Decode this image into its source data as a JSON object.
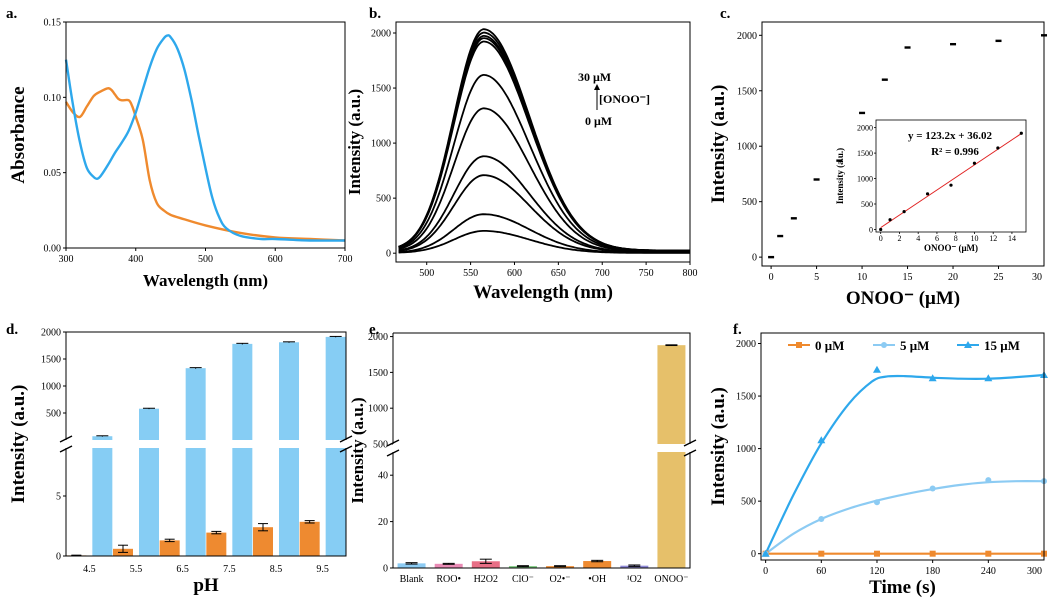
{
  "colors": {
    "orange": "#EF8A2E",
    "blue": "#2EA8EC",
    "lightblue": "#8CCBF3",
    "barblue": "#86CDF4",
    "barorange": "#EE8A30",
    "gold": "#E6C06A",
    "red": "#E02020"
  },
  "chart_data": [
    {
      "id": "a",
      "panel_label": "a.",
      "type": "line",
      "xlabel": "Wavelength (nm)",
      "ylabel": "Absorbance",
      "xlim": [
        300,
        700
      ],
      "ylim": [
        0,
        0.15
      ],
      "xticks": [
        300,
        400,
        500,
        600,
        700
      ],
      "yticks": [
        0.0,
        0.05,
        0.1,
        0.15
      ],
      "ytick_labels": [
        "0.00",
        "0.05",
        "0.10",
        "0.15"
      ],
      "series": [
        {
          "color": "orange",
          "x": [
            300,
            310,
            320,
            330,
            340,
            350,
            360,
            365,
            370,
            375,
            380,
            390,
            395,
            400,
            410,
            420,
            430,
            440,
            450,
            470,
            500,
            550,
            600,
            650,
            700
          ],
          "y": [
            0.097,
            0.09,
            0.087,
            0.094,
            0.101,
            0.104,
            0.106,
            0.105,
            0.102,
            0.099,
            0.098,
            0.098,
            0.094,
            0.087,
            0.072,
            0.045,
            0.03,
            0.025,
            0.022,
            0.019,
            0.015,
            0.01,
            0.007,
            0.006,
            0.005
          ]
        },
        {
          "color": "blue",
          "x": [
            300,
            310,
            320,
            330,
            340,
            345,
            350,
            360,
            370,
            380,
            390,
            400,
            410,
            420,
            430,
            440,
            445,
            450,
            460,
            470,
            480,
            490,
            500,
            510,
            520,
            530,
            550,
            580,
            600,
            650,
            700
          ],
          "y": [
            0.125,
            0.095,
            0.07,
            0.053,
            0.047,
            0.046,
            0.048,
            0.055,
            0.063,
            0.07,
            0.078,
            0.09,
            0.105,
            0.12,
            0.132,
            0.139,
            0.141,
            0.14,
            0.132,
            0.118,
            0.098,
            0.075,
            0.053,
            0.033,
            0.02,
            0.013,
            0.008,
            0.006,
            0.006,
            0.005,
            0.005
          ]
        }
      ]
    },
    {
      "id": "b",
      "panel_label": "b.",
      "type": "line",
      "xlabel": "Wavelength (nm)",
      "ylabel": "Intensity (a.u.)",
      "xlim": [
        465,
        800
      ],
      "ylim": [
        -80,
        2100
      ],
      "xticks": [
        500,
        550,
        600,
        650,
        700,
        750,
        800
      ],
      "yticks": [
        0,
        500,
        1000,
        1500,
        2000
      ],
      "peak_wavelength": 565,
      "series_peaks": [
        200,
        350,
        700,
        870,
        1300,
        1600,
        1900,
        1930,
        1950,
        1980,
        2010
      ],
      "annotation": {
        "top": "30 μM",
        "middle": "[ONOO⁻]",
        "bottom": "0 μM"
      }
    },
    {
      "id": "c",
      "panel_label": "c.",
      "type": "scatter",
      "xlabel": "ONOO⁻ (μM)",
      "ylabel": "Intensity (a.u.)",
      "xlim": [
        -1,
        30
      ],
      "ylim": [
        -80,
        2120
      ],
      "xticks": [
        0,
        5,
        10,
        15,
        20,
        25,
        30
      ],
      "yticks": [
        0,
        500,
        1000,
        1500,
        2000
      ],
      "x": [
        0,
        1,
        2.5,
        5,
        7.5,
        10,
        12.5,
        15,
        20,
        25,
        30
      ],
      "y": [
        0,
        190,
        350,
        700,
        870,
        1300,
        1600,
        1890,
        1920,
        1950,
        2000
      ],
      "inset": {
        "type": "scatter",
        "xlabel": "ONOO⁻ (μM)",
        "ylabel": "Intensity (a.u.)",
        "xlim": [
          -0.5,
          15.5
        ],
        "ylim": [
          -50,
          2150
        ],
        "xticks": [
          0,
          2,
          4,
          6,
          8,
          10,
          12,
          14
        ],
        "yticks": [
          0,
          500,
          1000,
          1500,
          2000
        ],
        "x": [
          0,
          1,
          2.5,
          5,
          7.5,
          10,
          12.5,
          15
        ],
        "y": [
          0,
          190,
          350,
          700,
          870,
          1300,
          1600,
          1890
        ],
        "fit": {
          "slope": 123.2,
          "intercept": 36.02
        },
        "equation": "y = 123.2x + 36.02",
        "r2": "R² = 0.996"
      }
    },
    {
      "id": "d",
      "panel_label": "d.",
      "type": "bar",
      "xlabel": "pH",
      "ylabel": "Intensity (a.u.)",
      "categories": [
        "4.5",
        "5.5",
        "6.5",
        "7.5",
        "8.5",
        "9.5"
      ],
      "ylim_lower": [
        0,
        9
      ],
      "ylim_upper": [
        0,
        2000
      ],
      "yticks_lower": [
        0,
        5
      ],
      "yticks_upper": [
        500,
        1000,
        1500,
        2000
      ],
      "series": [
        {
          "color": "barorange",
          "values": [
            0.05,
            0.6,
            1.3,
            1.95,
            2.4,
            2.85
          ],
          "errors": [
            0.02,
            0.3,
            0.1,
            0.1,
            0.3,
            0.1
          ]
        },
        {
          "color": "barblue",
          "values": [
            70,
            580,
            1330,
            1780,
            1810,
            1910
          ],
          "errors": [
            8,
            8,
            10,
            10,
            8,
            8
          ]
        }
      ]
    },
    {
      "id": "e",
      "panel_label": "e.",
      "type": "bar",
      "ylabel": "Intensity (a.u.)",
      "categories": [
        "Blank",
        "ROO•",
        "H2O2",
        "ClO⁻",
        "O2•⁻",
        "•OH",
        "¹O2",
        "ONOO⁻"
      ],
      "values": [
        2.0,
        1.8,
        2.9,
        0.8,
        0.8,
        3.0,
        1.0,
        1880
      ],
      "errors": [
        0.3,
        0.2,
        0.9,
        0.2,
        0.2,
        0.3,
        0.3,
        5
      ],
      "colors": [
        "#8CCBF3",
        "#E98BB5",
        "#E86F86",
        "#78C77C",
        "#EF8A2E",
        "#EE8A30",
        "#8E88D6",
        "#E6C06A"
      ],
      "ylim_lower": [
        0,
        50
      ],
      "ylim_upper": [
        500,
        2050
      ],
      "yticks_lower": [
        0,
        20,
        40
      ],
      "yticks_upper": [
        500,
        1000,
        1500,
        2000
      ]
    },
    {
      "id": "f",
      "panel_label": "f.",
      "type": "line",
      "xlabel": "Time (s)",
      "ylabel": "Intensity (a.u.)",
      "xlim": [
        -5,
        300
      ],
      "ylim": [
        -60,
        2100
      ],
      "xticks": [
        0,
        60,
        120,
        180,
        240,
        300
      ],
      "yticks": [
        0,
        500,
        1000,
        1500,
        2000
      ],
      "series": [
        {
          "name": "0 μM",
          "color": "orange",
          "marker": "square",
          "x": [
            0,
            60,
            120,
            180,
            240,
            300
          ],
          "y": [
            0,
            0,
            0,
            0,
            0,
            0
          ]
        },
        {
          "name": "5 μM",
          "color": "lightblue",
          "marker": "circle",
          "x": [
            0,
            60,
            120,
            180,
            240,
            300
          ],
          "y": [
            0,
            330,
            490,
            620,
            700,
            690
          ]
        },
        {
          "name": "15 μM",
          "color": "blue",
          "marker": "triangle",
          "x": [
            0,
            60,
            120,
            180,
            240,
            300
          ],
          "y": [
            0,
            1080,
            1750,
            1670,
            1670,
            1700
          ]
        }
      ],
      "fit_series": [
        {
          "color": "lightblue",
          "x": [
            0,
            30,
            60,
            90,
            120,
            150,
            180,
            210,
            240,
            270,
            300
          ],
          "y": [
            0,
            190,
            330,
            430,
            505,
            565,
            615,
            655,
            680,
            690,
            690
          ]
        },
        {
          "color": "blue",
          "x": [
            0,
            30,
            60,
            90,
            115,
            130,
            150,
            180,
            210,
            240,
            270,
            300
          ],
          "y": [
            0,
            560,
            1050,
            1430,
            1640,
            1685,
            1690,
            1675,
            1665,
            1665,
            1680,
            1700
          ]
        }
      ]
    }
  ]
}
